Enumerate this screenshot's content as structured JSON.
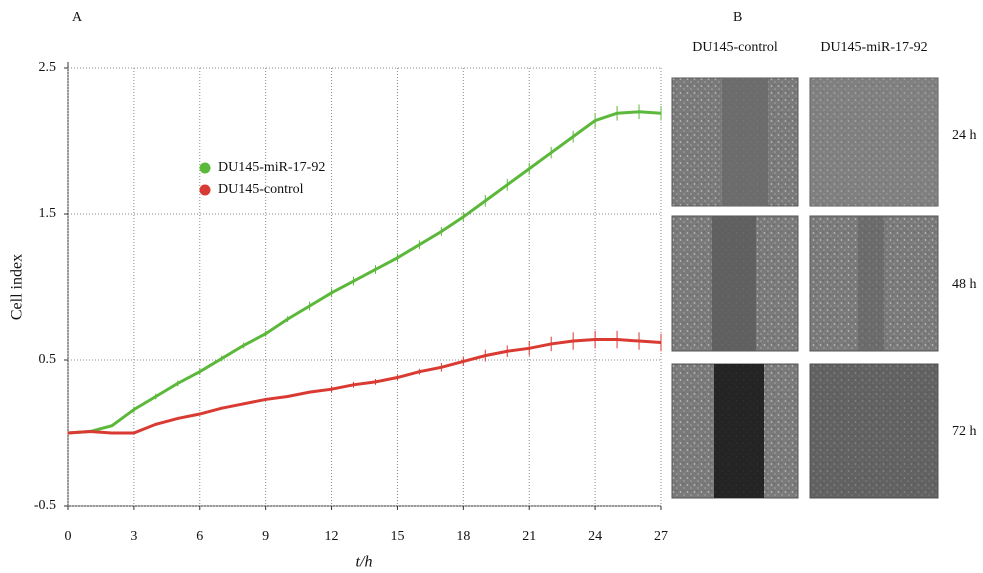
{
  "chart_data": {
    "type": "line",
    "panel_label": "A",
    "x_label": "t/h",
    "y_label": "Cell index",
    "x": [
      0,
      1,
      2,
      3,
      4,
      5,
      6,
      7,
      8,
      9,
      10,
      11,
      12,
      13,
      14,
      15,
      16,
      17,
      18,
      19,
      20,
      21,
      22,
      23,
      24,
      25,
      26,
      27
    ],
    "series": [
      {
        "name": "DU145-miR-17-92",
        "color": "#5cb83a",
        "values": [
          0,
          0.01,
          0.05,
          0.16,
          0.25,
          0.34,
          0.42,
          0.51,
          0.6,
          0.68,
          0.78,
          0.87,
          0.96,
          1.04,
          1.12,
          1.2,
          1.29,
          1.38,
          1.48,
          1.59,
          1.7,
          1.81,
          1.92,
          2.03,
          2.14,
          2.19,
          2.2,
          2.19
        ],
        "errors": [
          0.01,
          0.01,
          0.01,
          0.02,
          0.02,
          0.02,
          0.02,
          0.02,
          0.02,
          0.02,
          0.02,
          0.03,
          0.03,
          0.03,
          0.03,
          0.03,
          0.03,
          0.03,
          0.03,
          0.04,
          0.04,
          0.04,
          0.04,
          0.04,
          0.05,
          0.05,
          0.05,
          0.05
        ]
      },
      {
        "name": "DU145-control",
        "color": "#d93a32",
        "values": [
          0,
          0.01,
          0,
          0,
          0.06,
          0.1,
          0.13,
          0.17,
          0.2,
          0.23,
          0.25,
          0.28,
          0.3,
          0.33,
          0.35,
          0.38,
          0.42,
          0.45,
          0.49,
          0.53,
          0.56,
          0.58,
          0.61,
          0.63,
          0.64,
          0.64,
          0.63,
          0.62
        ],
        "errors": [
          0.01,
          0.01,
          0.01,
          0.01,
          0.01,
          0.01,
          0.01,
          0.01,
          0.01,
          0.01,
          0.01,
          0.01,
          0.02,
          0.02,
          0.02,
          0.02,
          0.02,
          0.03,
          0.03,
          0.04,
          0.04,
          0.05,
          0.05,
          0.06,
          0.06,
          0.06,
          0.06,
          0.06
        ]
      }
    ],
    "xlim": [
      0,
      27
    ],
    "xticks": [
      0,
      3,
      6,
      9,
      12,
      15,
      18,
      21,
      24,
      27
    ],
    "ylim": [
      -0.5,
      2.5
    ],
    "yticks": [
      -0.5,
      0.5,
      1.5,
      2.5
    ],
    "grid": true
  },
  "panel_b": {
    "label": "B",
    "columns": [
      "DU145-control",
      "DU145-miR-17-92"
    ],
    "rows": [
      "24 h",
      "48 h",
      "72 h"
    ]
  }
}
